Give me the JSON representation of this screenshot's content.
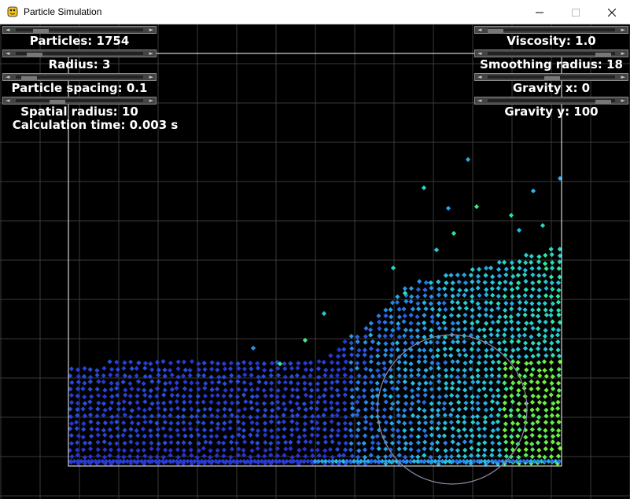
{
  "window": {
    "title": "Particle Simulation"
  },
  "controls_left": [
    {
      "label": "Particles: 1754",
      "fraction": 0.15
    },
    {
      "label": "Radius: 3",
      "fraction": 0.1
    },
    {
      "label": "Particle spacing: 0.1",
      "fraction": 0.05
    },
    {
      "label": "Spatial radius: 10",
      "fraction": 0.3
    }
  ],
  "controls_right": [
    {
      "label": "Viscosity: 1.0",
      "fraction": 0.0
    },
    {
      "label": "Smoothing radius: 18",
      "fraction": 0.95
    },
    {
      "label": "Gravity x: 0",
      "fraction": 0.5
    },
    {
      "label": "Gravity y: 100",
      "fraction": 0.95
    }
  ],
  "stats": {
    "calc_time": "Calculation time: 0.003 s"
  },
  "colors": {
    "grid": "#3a3a3a",
    "boundary": "#ffffff",
    "cursor_circle": "#8a8aa8"
  }
}
